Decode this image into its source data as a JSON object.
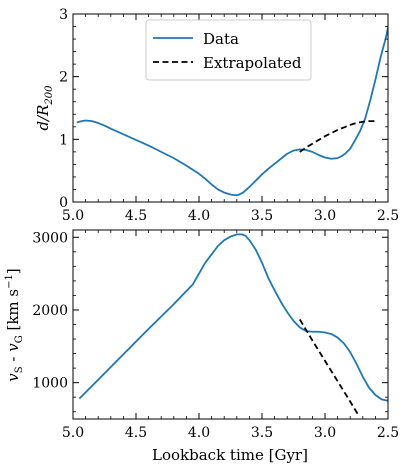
{
  "chart_data": [
    {
      "type": "line",
      "xlabel": "",
      "ylabel": "d/R200",
      "ylabel_main": "d/R",
      "ylabel_sub": "200",
      "xlim": [
        5.0,
        2.5
      ],
      "ylim": [
        0,
        3
      ],
      "x_inverted": true,
      "xticks": [
        5.0,
        4.5,
        4.0,
        3.5,
        3.0,
        2.5
      ],
      "xtick_labels": [
        "5.0",
        "4.5",
        "4.0",
        "3.5",
        "3.0",
        "2.5"
      ],
      "yticks": [
        0,
        1,
        2,
        3
      ],
      "ytick_labels": [
        "0",
        "1",
        "2",
        "3"
      ],
      "legend_position": "top-center",
      "series": [
        {
          "name": "Data",
          "style": "solid",
          "color": "#1f77b4",
          "x": [
            4.97,
            4.93,
            4.9,
            4.85,
            4.8,
            4.75,
            4.7,
            4.6,
            4.5,
            4.4,
            4.3,
            4.2,
            4.1,
            4.0,
            3.95,
            3.9,
            3.85,
            3.8,
            3.75,
            3.72,
            3.7,
            3.68,
            3.65,
            3.6,
            3.55,
            3.5,
            3.45,
            3.4,
            3.35,
            3.3,
            3.25,
            3.2,
            3.15,
            3.1,
            3.05,
            3.0,
            2.95,
            2.9,
            2.87,
            2.84,
            2.8,
            2.76,
            2.72,
            2.68,
            2.64,
            2.6,
            2.56,
            2.52,
            2.5
          ],
          "y": [
            1.27,
            1.29,
            1.3,
            1.29,
            1.26,
            1.22,
            1.17,
            1.08,
            0.99,
            0.9,
            0.8,
            0.7,
            0.58,
            0.45,
            0.37,
            0.28,
            0.2,
            0.15,
            0.12,
            0.11,
            0.11,
            0.12,
            0.15,
            0.24,
            0.34,
            0.44,
            0.53,
            0.61,
            0.69,
            0.77,
            0.82,
            0.84,
            0.83,
            0.8,
            0.75,
            0.71,
            0.69,
            0.7,
            0.73,
            0.77,
            0.85,
            0.99,
            1.14,
            1.34,
            1.63,
            1.95,
            2.3,
            2.6,
            2.78
          ]
        },
        {
          "name": "Extrapolated",
          "style": "dashed",
          "color": "#000000",
          "x": [
            3.2,
            3.15,
            3.1,
            3.05,
            3.0,
            2.95,
            2.9,
            2.85,
            2.8,
            2.75,
            2.7,
            2.65,
            2.6
          ],
          "y": [
            0.8,
            0.87,
            0.93,
            0.99,
            1.05,
            1.1,
            1.15,
            1.19,
            1.23,
            1.26,
            1.28,
            1.29,
            1.29
          ]
        }
      ]
    },
    {
      "type": "line",
      "xlabel": "Lookback time [Gyr]",
      "ylabel": "vS - vG [km s^-1]",
      "ylabel_v1": "v",
      "ylabel_s1": "S",
      "ylabel_mid": " - ",
      "ylabel_v2": "v",
      "ylabel_s2": "G",
      "ylabel_unit": " [km s",
      "ylabel_exp": "−1",
      "ylabel_close": "]",
      "xlim": [
        5.0,
        2.5
      ],
      "ylim": [
        500,
        3100
      ],
      "x_inverted": true,
      "xticks": [
        5.0,
        4.5,
        4.0,
        3.5,
        3.0,
        2.5
      ],
      "xtick_labels": [
        "5.0",
        "4.5",
        "4.0",
        "3.5",
        "3.0",
        "2.5"
      ],
      "yticks": [
        1000,
        2000,
        3000
      ],
      "ytick_labels": [
        "1000",
        "2000",
        "3000"
      ],
      "series": [
        {
          "style": "solid",
          "color": "#1f77b4",
          "x": [
            4.95,
            4.8,
            4.6,
            4.4,
            4.2,
            4.05,
            3.95,
            3.85,
            3.8,
            3.75,
            3.7,
            3.66,
            3.63,
            3.6,
            3.55,
            3.5,
            3.45,
            3.4,
            3.35,
            3.3,
            3.25,
            3.2,
            3.15,
            3.1,
            3.05,
            3.0,
            2.95,
            2.9,
            2.85,
            2.8,
            2.75,
            2.7,
            2.65,
            2.6,
            2.55,
            2.5
          ],
          "y": [
            780,
            1040,
            1390,
            1740,
            2080,
            2350,
            2650,
            2880,
            2960,
            3010,
            3040,
            3040,
            3020,
            2960,
            2830,
            2650,
            2440,
            2270,
            2110,
            1970,
            1850,
            1760,
            1710,
            1700,
            1700,
            1690,
            1670,
            1620,
            1540,
            1420,
            1260,
            1080,
            930,
            830,
            770,
            750
          ]
        },
        {
          "style": "dashed",
          "color": "#000000",
          "x": [
            3.2,
            3.1,
            3.0,
            2.9,
            2.8,
            2.73
          ],
          "y": [
            1870,
            1580,
            1300,
            1020,
            740,
            540
          ]
        }
      ]
    }
  ]
}
